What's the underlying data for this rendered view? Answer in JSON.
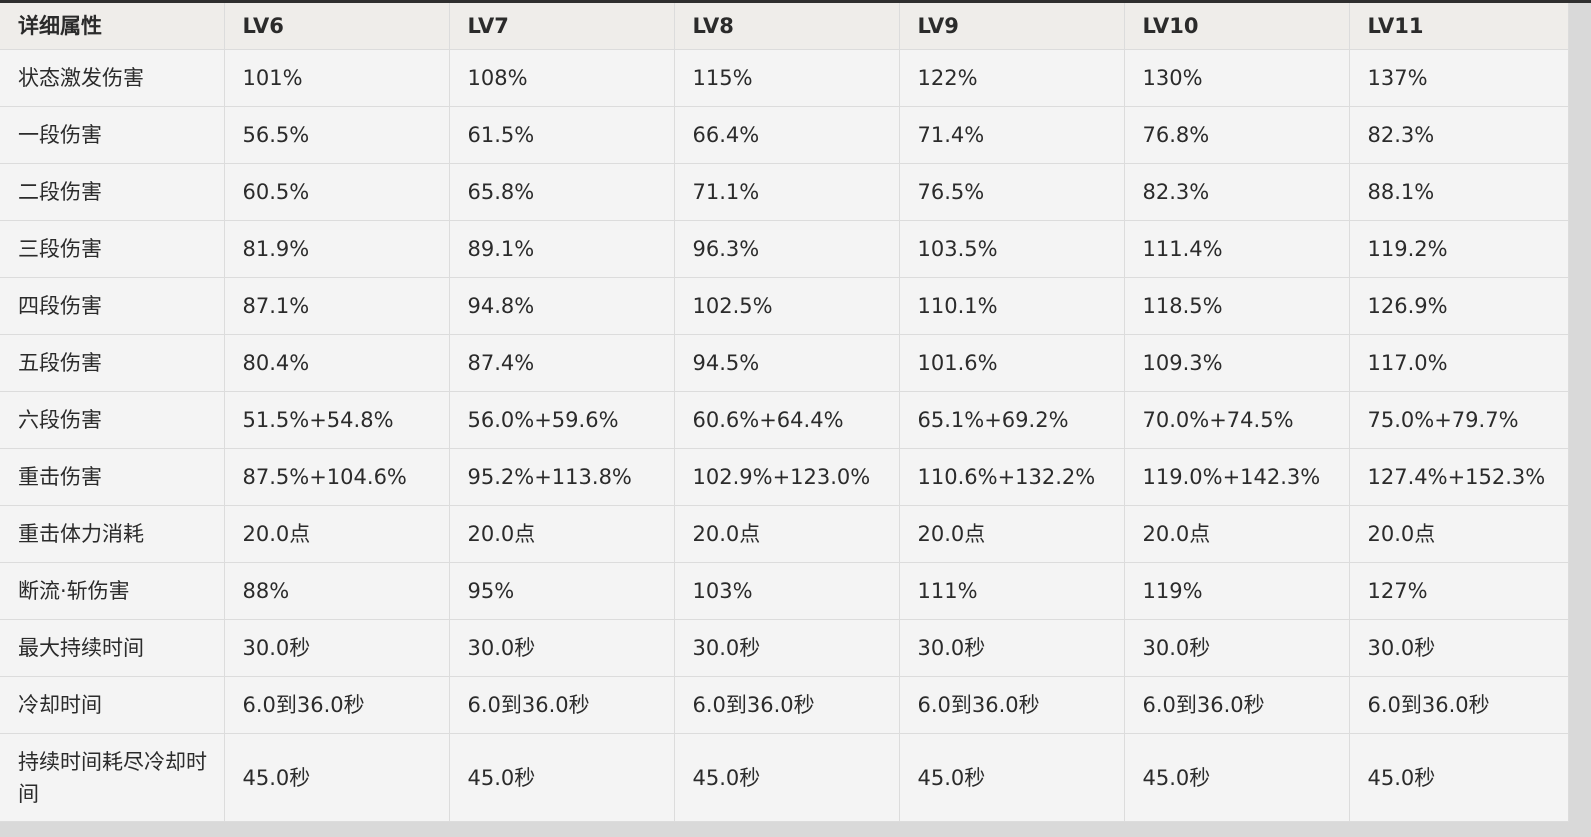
{
  "table": {
    "headers": [
      "详细属性",
      "LV6",
      "LV7",
      "LV8",
      "LV9",
      "LV10",
      "LV11"
    ],
    "rows": [
      [
        "状态激发伤害",
        "101%",
        "108%",
        "115%",
        "122%",
        "130%",
        "137%"
      ],
      [
        "一段伤害",
        "56.5%",
        "61.5%",
        "66.4%",
        "71.4%",
        "76.8%",
        "82.3%"
      ],
      [
        "二段伤害",
        "60.5%",
        "65.8%",
        "71.1%",
        "76.5%",
        "82.3%",
        "88.1%"
      ],
      [
        "三段伤害",
        "81.9%",
        "89.1%",
        "96.3%",
        "103.5%",
        "111.4%",
        "119.2%"
      ],
      [
        "四段伤害",
        "87.1%",
        "94.8%",
        "102.5%",
        "110.1%",
        "118.5%",
        "126.9%"
      ],
      [
        "五段伤害",
        "80.4%",
        "87.4%",
        "94.5%",
        "101.6%",
        "109.3%",
        "117.0%"
      ],
      [
        "六段伤害",
        "51.5%+54.8%",
        "56.0%+59.6%",
        "60.6%+64.4%",
        "65.1%+69.2%",
        "70.0%+74.5%",
        "75.0%+79.7%"
      ],
      [
        "重击伤害",
        "87.5%+104.6%",
        "95.2%+113.8%",
        "102.9%+123.0%",
        "110.6%+132.2%",
        "119.0%+142.3%",
        "127.4%+152.3%"
      ],
      [
        "重击体力消耗",
        "20.0点",
        "20.0点",
        "20.0点",
        "20.0点",
        "20.0点",
        "20.0点"
      ],
      [
        "断流·斩伤害",
        "88%",
        "95%",
        "103%",
        "111%",
        "119%",
        "127%"
      ],
      [
        "最大持续时间",
        "30.0秒",
        "30.0秒",
        "30.0秒",
        "30.0秒",
        "30.0秒",
        "30.0秒"
      ],
      [
        "冷却时间",
        "6.0到36.0秒",
        "6.0到36.0秒",
        "6.0到36.0秒",
        "6.0到36.0秒",
        "6.0到36.0秒",
        "6.0到36.0秒"
      ],
      [
        "持续时间耗尽冷却时间",
        "45.0秒",
        "45.0秒",
        "45.0秒",
        "45.0秒",
        "45.0秒",
        "45.0秒"
      ]
    ]
  }
}
